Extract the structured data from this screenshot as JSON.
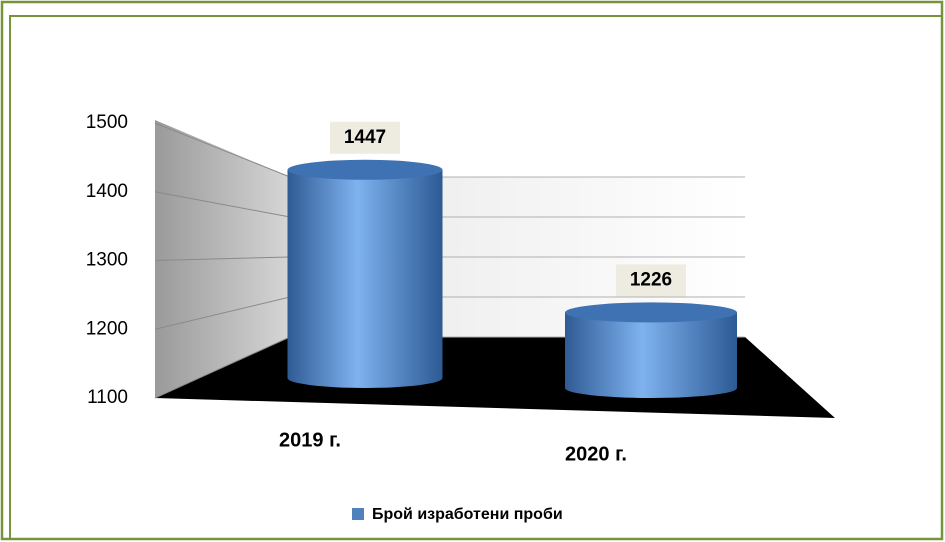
{
  "chart_data": {
    "type": "bar3d-cylinder",
    "categories": [
      "2019 г.",
      "2020 г."
    ],
    "series": [
      {
        "name": "Брой изработени проби",
        "color": "#4f81bd",
        "values": [
          1447,
          1226
        ]
      }
    ],
    "ylim": [
      1100,
      1500
    ],
    "yticks": [
      1100,
      1200,
      1300,
      1400,
      1500
    ],
    "grid": true,
    "legend": "bottom"
  }
}
